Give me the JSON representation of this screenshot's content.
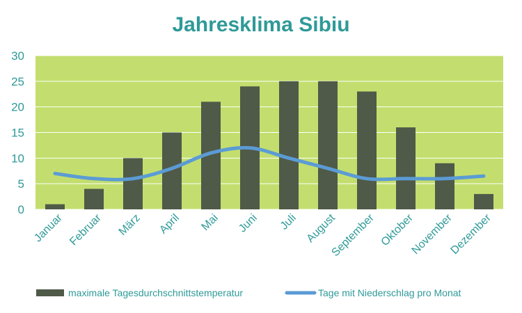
{
  "chart_data": {
    "type": "bar",
    "title": "Jahresklima  Sibiu",
    "categories": [
      "Januar",
      "Februar",
      "März",
      "April",
      "Mai",
      "Juni",
      "Juli",
      "August",
      "September",
      "Oktober",
      "November",
      "Dezember"
    ],
    "series": [
      {
        "name": "maximale Tagesdurchschnittstemperatur",
        "type": "bar",
        "color": "#4f5a48",
        "values": [
          1,
          4,
          10,
          15,
          21,
          24,
          25,
          25,
          23,
          16,
          9,
          3
        ]
      },
      {
        "name": "Tage mit Niederschlag pro Monat",
        "type": "line",
        "color": "#5b9bd5",
        "values": [
          7,
          6,
          6,
          8,
          11,
          12,
          10,
          8,
          6,
          6,
          6,
          6.5
        ]
      }
    ],
    "ylim": [
      0,
      30
    ],
    "yticks": [
      0,
      5,
      10,
      15,
      20,
      25,
      30
    ],
    "grid": true,
    "legend_position": "bottom",
    "plot_background": "#c3de6e",
    "grid_color": "#ffffff",
    "text_color": "#2e9a98"
  }
}
